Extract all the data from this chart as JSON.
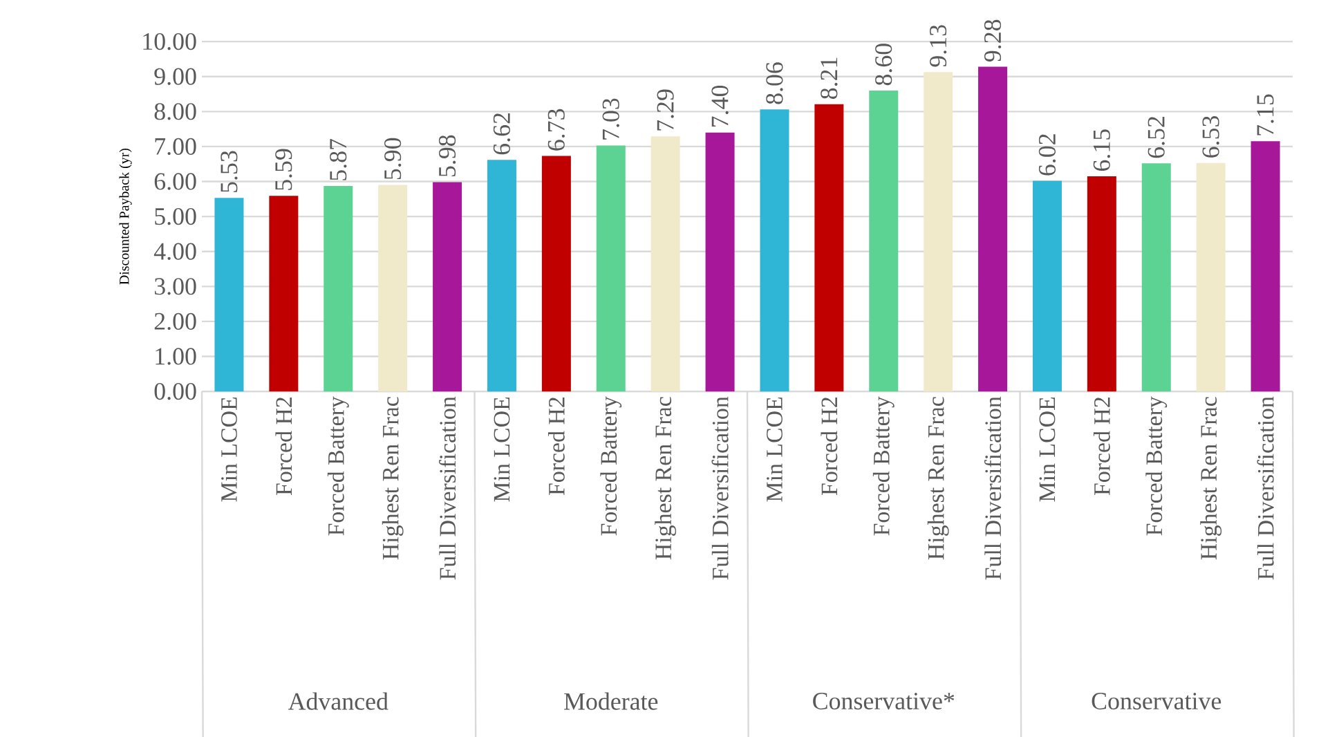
{
  "chart_data": {
    "type": "bar",
    "ylabel": "Discounted Payback (yr)",
    "categories": [
      "Min LCOE",
      "Forced H2",
      "Forced Battery",
      "Highest Ren Frac",
      "Full Diversification",
      "Min LCOE",
      "Forced H2",
      "Forced Battery",
      "Highest Ren Frac",
      "Full Diversification",
      "Min LCOE",
      "Forced H2",
      "Forced Battery",
      "Highest Ren Frac",
      "Full Diversification",
      "Min LCOE",
      "Forced H2",
      "Forced Battery",
      "Highest Ren Frac",
      "Full Diversification"
    ],
    "values": [
      5.53,
      5.59,
      5.87,
      5.9,
      5.98,
      6.62,
      6.73,
      7.03,
      7.29,
      7.4,
      8.06,
      8.21,
      8.6,
      9.13,
      9.28,
      6.02,
      6.15,
      6.52,
      6.53,
      7.15
    ],
    "value_labels": [
      "5.53",
      "5.59",
      "5.87",
      "5.90",
      "5.98",
      "6.62",
      "6.73",
      "7.03",
      "7.29",
      "7.40",
      "8.06",
      "8.21",
      "8.60",
      "9.13",
      "9.28",
      "6.02",
      "6.15",
      "6.52",
      "6.53",
      "7.15"
    ],
    "colors": [
      "#2fb5d6",
      "#c00000",
      "#5cd293",
      "#f0eacb",
      "#a6179a",
      "#2fb5d6",
      "#c00000",
      "#5cd293",
      "#f0eacb",
      "#a6179a",
      "#2fb5d6",
      "#c00000",
      "#5cd293",
      "#f0eacb",
      "#a6179a",
      "#2fb5d6",
      "#c00000",
      "#5cd293",
      "#f0eacb",
      "#a6179a"
    ],
    "ylim": [
      0,
      10
    ],
    "yticks": [
      {
        "value": 0,
        "label": "0.00"
      },
      {
        "value": 1,
        "label": "1.00"
      },
      {
        "value": 2,
        "label": "2.00"
      },
      {
        "value": 3,
        "label": "3.00"
      },
      {
        "value": 4,
        "label": "4.00"
      },
      {
        "value": 5,
        "label": "5.00"
      },
      {
        "value": 6,
        "label": "6.00"
      },
      {
        "value": 7,
        "label": "7.00"
      },
      {
        "value": 8,
        "label": "8.00"
      },
      {
        "value": 9,
        "label": "9.00"
      },
      {
        "value": 10,
        "label": "10.00"
      }
    ],
    "grid": "y",
    "annotations": [
      "Advanced",
      "Moderate",
      "Conservative*",
      "Conservative"
    ]
  }
}
